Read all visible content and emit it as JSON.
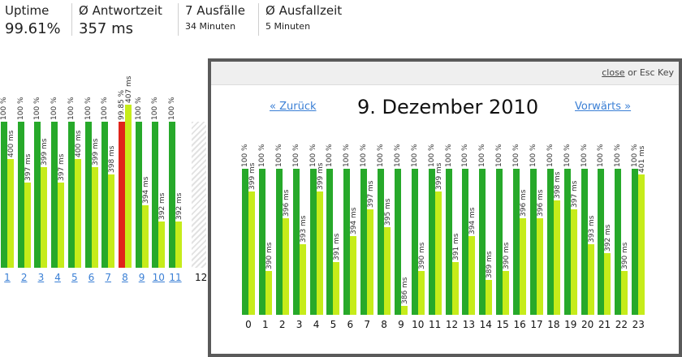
{
  "stats": {
    "uptime": {
      "label": "Uptime",
      "value": "99.61%"
    },
    "response": {
      "label": "Ø Antwortzeit",
      "value": "357 ms"
    },
    "outages": {
      "label": "7 Ausfälle",
      "value": "34 Minuten"
    },
    "outage_avg": {
      "label": "Ø Ausfallzeit",
      "value": "5 Minuten"
    }
  },
  "colors": {
    "green": "#27a92a",
    "lime": "#c6ec1a",
    "red": "#e0241b",
    "link": "#3a7fd5"
  },
  "month_chart": {
    "days": [
      {
        "label": "1",
        "uptime": "100 %",
        "uptime_value": 100,
        "ms": "400 ms",
        "ms_value": 400
      },
      {
        "label": "2",
        "uptime": "100 %",
        "uptime_value": 100,
        "ms": "397 ms",
        "ms_value": 397
      },
      {
        "label": "3",
        "uptime": "100 %",
        "uptime_value": 100,
        "ms": "399 ms",
        "ms_value": 399
      },
      {
        "label": "4",
        "uptime": "100 %",
        "uptime_value": 100,
        "ms": "397 ms",
        "ms_value": 397
      },
      {
        "label": "5",
        "uptime": "100 %",
        "uptime_value": 100,
        "ms": "400 ms",
        "ms_value": 400
      },
      {
        "label": "6",
        "uptime": "100 %",
        "uptime_value": 100,
        "ms": "399 ms",
        "ms_value": 399
      },
      {
        "label": "7",
        "uptime": "100 %",
        "uptime_value": 100,
        "ms": "398 ms",
        "ms_value": 398
      },
      {
        "label": "8",
        "uptime": "99.85 %",
        "uptime_value": 99.85,
        "ms": "407 ms",
        "ms_value": 407,
        "outage": true
      },
      {
        "label": "9",
        "uptime": "100 %",
        "uptime_value": 100,
        "ms": "394 ms",
        "ms_value": 394
      },
      {
        "label": "10",
        "uptime": "100 %",
        "uptime_value": 100,
        "ms": "392 ms",
        "ms_value": 392
      },
      {
        "label": "11",
        "uptime": "100 %",
        "uptime_value": 100,
        "ms": "392 ms",
        "ms_value": 392
      }
    ],
    "current_day": "12"
  },
  "overlay": {
    "close_link": "close",
    "close_suffix": " or Esc Key",
    "back_link": "« Zurück",
    "title": "9. Dezember 2010",
    "forward_link": "Vorwärts »",
    "hours": [
      {
        "label": "0",
        "uptime": "100 %",
        "ms": "399 ms",
        "ms_value": 399
      },
      {
        "label": "1",
        "uptime": "100 %",
        "ms": "390 ms",
        "ms_value": 390
      },
      {
        "label": "2",
        "uptime": "100 %",
        "ms": "396 ms",
        "ms_value": 396
      },
      {
        "label": "3",
        "uptime": "100 %",
        "ms": "393 ms",
        "ms_value": 393
      },
      {
        "label": "4",
        "uptime": "100 %",
        "ms": "399 ms",
        "ms_value": 399
      },
      {
        "label": "5",
        "uptime": "100 %",
        "ms": "391 ms",
        "ms_value": 391
      },
      {
        "label": "6",
        "uptime": "100 %",
        "ms": "394 ms",
        "ms_value": 394
      },
      {
        "label": "7",
        "uptime": "100 %",
        "ms": "397 ms",
        "ms_value": 397
      },
      {
        "label": "8",
        "uptime": "100 %",
        "ms": "395 ms",
        "ms_value": 395
      },
      {
        "label": "9",
        "uptime": "100 %",
        "ms": "386 ms",
        "ms_value": 386
      },
      {
        "label": "10",
        "uptime": "100 %",
        "ms": "390 ms",
        "ms_value": 390
      },
      {
        "label": "11",
        "uptime": "100 %",
        "ms": "399 ms",
        "ms_value": 399
      },
      {
        "label": "12",
        "uptime": "100 %",
        "ms": "391 ms",
        "ms_value": 391
      },
      {
        "label": "13",
        "uptime": "100 %",
        "ms": "394 ms",
        "ms_value": 394
      },
      {
        "label": "14",
        "uptime": "100 %",
        "ms": "389 ms",
        "ms_value": 389
      },
      {
        "label": "15",
        "uptime": "100 %",
        "ms": "390 ms",
        "ms_value": 390
      },
      {
        "label": "16",
        "uptime": "100 %",
        "ms": "396 ms",
        "ms_value": 396
      },
      {
        "label": "17",
        "uptime": "100 %",
        "ms": "396 ms",
        "ms_value": 396
      },
      {
        "label": "18",
        "uptime": "100 %",
        "ms": "398 ms",
        "ms_value": 398
      },
      {
        "label": "19",
        "uptime": "100 %",
        "ms": "397 ms",
        "ms_value": 397
      },
      {
        "label": "20",
        "uptime": "100 %",
        "ms": "393 ms",
        "ms_value": 393
      },
      {
        "label": "21",
        "uptime": "100 %",
        "ms": "392 ms",
        "ms_value": 392
      },
      {
        "label": "22",
        "uptime": "100 %",
        "ms": "390 ms",
        "ms_value": 390
      },
      {
        "label": "23",
        "uptime": "100 %",
        "ms": "401 ms",
        "ms_value": 401
      }
    ]
  }
}
